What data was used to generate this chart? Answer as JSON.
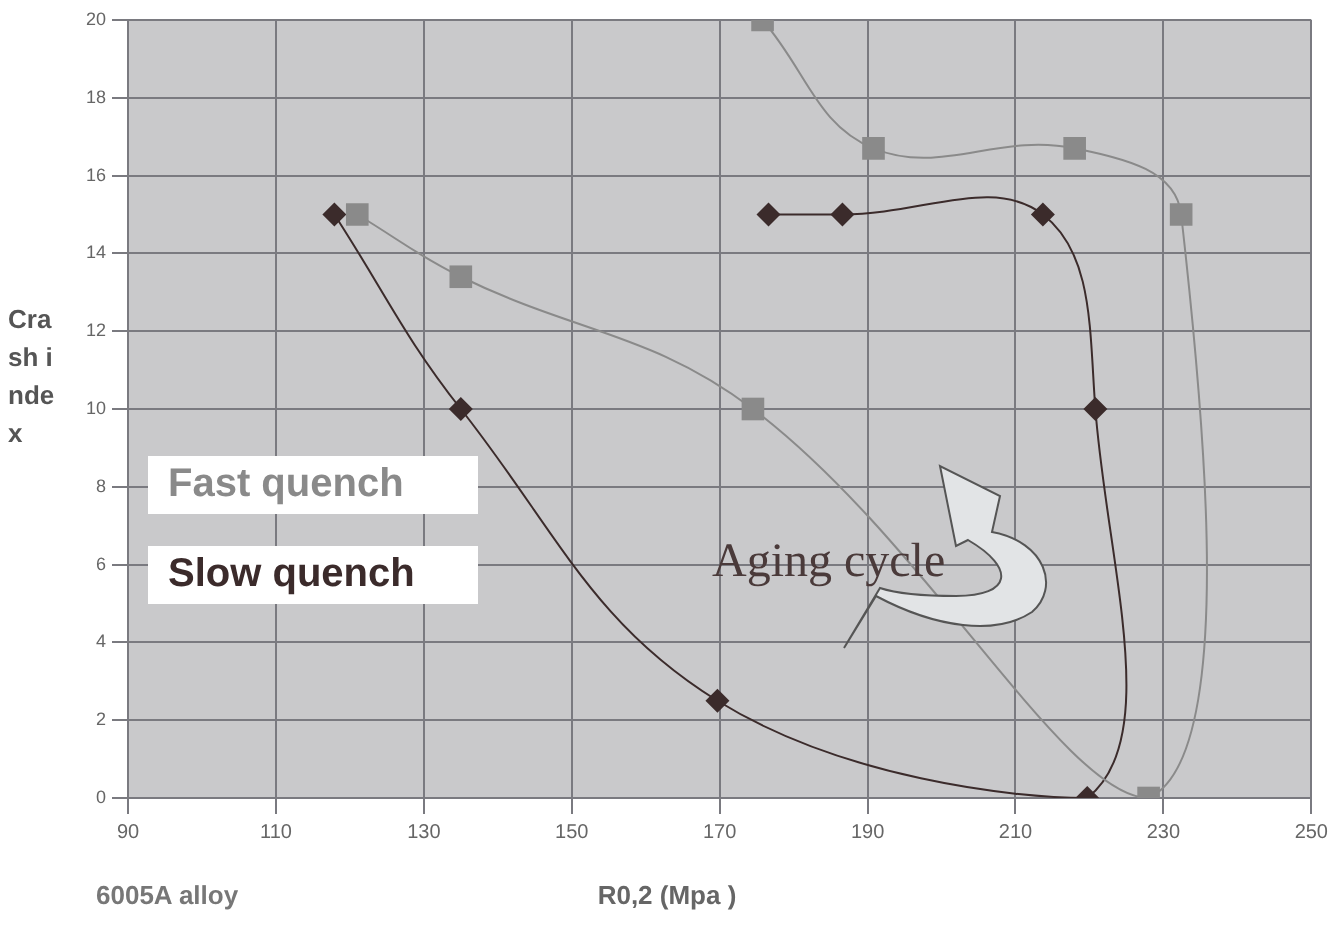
{
  "chart_data": {
    "type": "line",
    "xlabel": "R0,2 (Mpa )",
    "ylabel": "Crash index",
    "xlim": [
      90,
      250
    ],
    "xticks": [
      90,
      110,
      130,
      150,
      170,
      190,
      210,
      230,
      250
    ],
    "ylim": [
      0,
      20
    ],
    "yticks": [
      0,
      2,
      4,
      6,
      8,
      10,
      12,
      14,
      16,
      18,
      20
    ],
    "grid": true,
    "legend": "left",
    "series": [
      {
        "name": "Fast quench",
        "color": "#8a8a8a",
        "marker": "square",
        "x": [
          121,
          135,
          174.5,
          228,
          232.4,
          218,
          190.8,
          175.8
        ],
        "values": [
          15,
          13.4,
          10,
          0,
          15,
          16.7,
          16.7,
          20
        ]
      },
      {
        "name": "Slow quench",
        "color": "#3b2b2b",
        "marker": "diamond",
        "x": [
          176.6,
          186.6,
          213.7,
          220.8,
          219.7,
          169.7,
          135,
          117.9
        ],
        "values": [
          15,
          15,
          15,
          10,
          0,
          2.5,
          10,
          15
        ]
      }
    ],
    "annotations": [
      "Aging cycle",
      "6005A alloy"
    ]
  }
}
